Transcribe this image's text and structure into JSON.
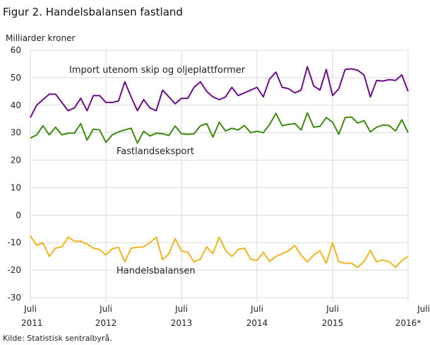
{
  "title": "Figur 2. Handelsbalansen fastland",
  "source": "Kilde: Statistisk sentralbyrå.",
  "chart_data": {
    "type": "line",
    "title": "Figur 2. Handelsbalansen fastland",
    "ylabel": "Milliarder  kroner",
    "xlabel": "",
    "ylim": [
      -30,
      60
    ],
    "yticks": [
      60,
      50,
      40,
      30,
      20,
      10,
      0,
      -10,
      -20,
      -30
    ],
    "x_start": "2011-07",
    "x_end": "2016-07",
    "xtick_labels": [
      {
        "month": "Juli",
        "year": "2011"
      },
      {
        "month": "Juli",
        "year": "2012"
      },
      {
        "month": "Juli",
        "year": "2013"
      },
      {
        "month": "Juli",
        "year": "2014"
      },
      {
        "month": "Juli",
        "year": "2015"
      },
      {
        "month": "Juli",
        "year": "2016*"
      }
    ],
    "grid": true,
    "series": [
      {
        "name": "Import utenom skip og oljeplattformer",
        "color": "#6b0e8c",
        "values": [
          35.5,
          40,
          42,
          44,
          44,
          41,
          38,
          39,
          42.5,
          38,
          43.5,
          43.5,
          41,
          41,
          41.5,
          48.5,
          43,
          38,
          42,
          39,
          38,
          45.5,
          43,
          40.5,
          42.5,
          42.5,
          46.5,
          48.5,
          45,
          43,
          42,
          43,
          46.5,
          43.5,
          44.5,
          45.5,
          46.5,
          43,
          49.5,
          52,
          46.5,
          46,
          44.5,
          45.5,
          54,
          47,
          45.5,
          53,
          43.5,
          46,
          53,
          53.2,
          52.7,
          51,
          43,
          49,
          48.8,
          49.3,
          49,
          51,
          45
        ]
      },
      {
        "name": "Fastlandseksport",
        "color": "#3c8a0e",
        "values": [
          28,
          29.2,
          32.5,
          29.2,
          32,
          29.2,
          29.8,
          29.8,
          33.3,
          27.3,
          31.3,
          31,
          26.5,
          29.2,
          30.3,
          31,
          31.6,
          26.2,
          30.5,
          28.8,
          29.8,
          29.6,
          29,
          32.4,
          29.6,
          29.4,
          29.6,
          32.5,
          33.3,
          28.4,
          33.8,
          30.6,
          31.6,
          31,
          32.6,
          30,
          30.5,
          30,
          33,
          37,
          32.5,
          33,
          33.3,
          31,
          37.2,
          32,
          32.3,
          35.5,
          33.8,
          29.4,
          35.5,
          35.7,
          33.5,
          34.4,
          30.3,
          32,
          32.8,
          32.6,
          30.6,
          34.7,
          30
        ]
      },
      {
        "name": "Handelsbalansen",
        "color": "#f0b41e",
        "values": [
          -7.5,
          -11,
          -10,
          -15,
          -12,
          -11.5,
          -8,
          -9.5,
          -9.5,
          -10.5,
          -12,
          -12.5,
          -14.5,
          -12.2,
          -11.7,
          -17,
          -12,
          -11.7,
          -11.5,
          -10,
          -8,
          -16.2,
          -14,
          -8.5,
          -13,
          -13.5,
          -17,
          -16,
          -11.5,
          -14,
          -8,
          -12.8,
          -15,
          -12.5,
          -12,
          -16,
          -16.5,
          -13.5,
          -16.8,
          -15,
          -14,
          -13,
          -11,
          -14.5,
          -17,
          -14.5,
          -13,
          -17.5,
          -10,
          -17,
          -17.5,
          -17.5,
          -19,
          -16.8,
          -12.8,
          -17,
          -16.3,
          -17,
          -19,
          -16.5,
          -15
        ]
      }
    ]
  }
}
